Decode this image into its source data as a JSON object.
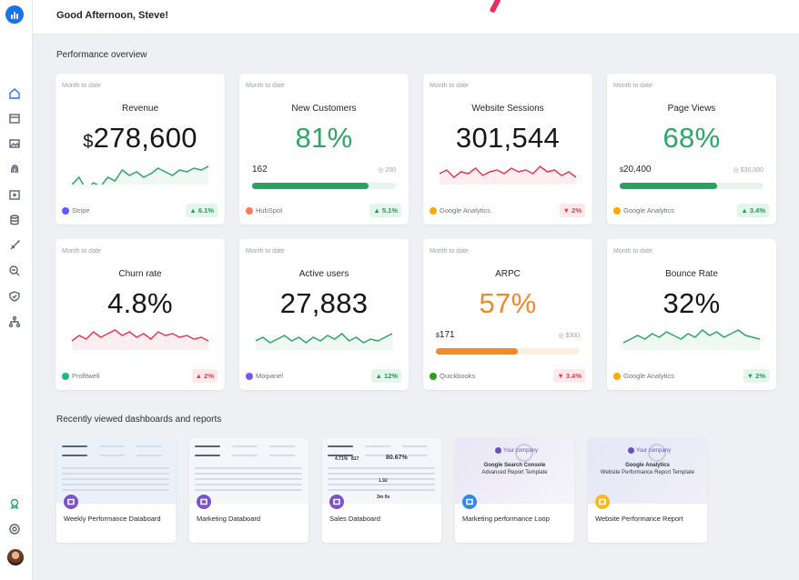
{
  "header": {
    "greeting": "Good Afternoon, Steve!"
  },
  "sections": {
    "overview": "Performance overview",
    "recent": "Recently viewed dashboards and reports"
  },
  "sidebar": {
    "items": [
      "home-icon",
      "calendar-icon",
      "image-icon",
      "fingerprint-icon",
      "plus-box-icon",
      "database-icon",
      "rocket-icon",
      "search-minus-icon",
      "shield-icon",
      "network-icon"
    ],
    "bottom": [
      "badge-icon",
      "help-icon",
      "avatar"
    ]
  },
  "cards": [
    {
      "mtd": "Month to date",
      "title": "Revenue",
      "value_prefix": "$",
      "value": "278,600",
      "color": "dark",
      "source": "Stripe",
      "source_color": "#635bff",
      "delta": "▲ 6.1%",
      "dir": "up",
      "spark": [
        38,
        30,
        44,
        36,
        40,
        30,
        34,
        22,
        28,
        24,
        30,
        26,
        20,
        24,
        28,
        22,
        24,
        20,
        22,
        18
      ],
      "spark_color": "#2ea66a"
    },
    {
      "mtd": "Month to date",
      "title": "New Customers",
      "value": "81%",
      "color": "green",
      "progress": {
        "current": "162",
        "target": "200",
        "pct": 0.81,
        "style": "green"
      },
      "source": "HubSpot",
      "source_color": "#ff7a59",
      "delta": "▲ 5.1%",
      "dir": "up"
    },
    {
      "mtd": "Month to date",
      "title": "Website Sessions",
      "value": "301,544",
      "color": "dark",
      "source": "Google Analytics",
      "source_color": "#f9ab00",
      "delta": "▼ 2%",
      "dir": "down",
      "spark": [
        26,
        22,
        30,
        24,
        26,
        20,
        28,
        24,
        22,
        26,
        20,
        24,
        22,
        26,
        18,
        24,
        22,
        28,
        24,
        30
      ],
      "spark_color": "#e8384f"
    },
    {
      "mtd": "Month to date",
      "title": "Page Views",
      "value": "68%",
      "color": "green",
      "progress": {
        "current_prefix": "$",
        "current": "20,400",
        "target": "$30,000",
        "pct": 0.68,
        "style": "green"
      },
      "source": "Google Analytics",
      "source_color": "#f9ab00",
      "delta": "▲ 3.4%",
      "dir": "up"
    },
    {
      "mtd": "Month to date",
      "title": "Churn rate",
      "value": "4.8%",
      "color": "dark",
      "source": "Profitwell",
      "source_color": "#21b685",
      "delta": "▲ 2%",
      "dir": "down",
      "spark": [
        28,
        22,
        26,
        18,
        24,
        20,
        16,
        22,
        18,
        24,
        20,
        26,
        18,
        22,
        20,
        24,
        22,
        26,
        24,
        28
      ],
      "spark_color": "#e8384f"
    },
    {
      "mtd": "Month to date",
      "title": "Active users",
      "value": "27,883",
      "color": "dark",
      "source": "Mixpanel",
      "source_color": "#7856ff",
      "delta": "▲ 12%",
      "dir": "up",
      "spark": [
        28,
        24,
        30,
        26,
        22,
        28,
        24,
        30,
        24,
        28,
        22,
        26,
        20,
        28,
        24,
        30,
        26,
        28,
        24,
        20
      ],
      "spark_color": "#2ea66a"
    },
    {
      "mtd": "Month to date",
      "title": "ARPC",
      "value": "57%",
      "color": "orange",
      "progress": {
        "current_prefix": "$",
        "current": "171",
        "target": "$300",
        "pct": 0.57,
        "style": "orange"
      },
      "source": "Quickbooks",
      "source_color": "#2ca01c",
      "delta": "▼ 3.4%",
      "dir": "down"
    },
    {
      "mtd": "Month to date",
      "title": "Bounce Rate",
      "value": "32%",
      "color": "dark",
      "source": "Google Analytics",
      "source_color": "#f9ab00",
      "delta": "▼ 2%",
      "dir": "up",
      "spark": [
        30,
        26,
        22,
        26,
        20,
        24,
        18,
        22,
        26,
        20,
        24,
        16,
        22,
        18,
        24,
        20,
        16,
        22,
        24,
        26
      ],
      "spark_color": "#2ea66a"
    }
  ],
  "recent": [
    {
      "name": "Weekly Performance Databoard",
      "thumb": "blue",
      "badge": "purple"
    },
    {
      "name": "Marketing Databoard",
      "thumb": "plain",
      "badge": "purple"
    },
    {
      "name": "Sales Databoard",
      "thumb": "plain",
      "badge": "purple",
      "stats": [
        "4.71%",
        "817",
        "80.67%",
        "1.92",
        "3m 0s"
      ]
    },
    {
      "name": "Marketing performance Loop",
      "thumb": "purple",
      "badge": "blue",
      "company": "Your company",
      "t1": "Google Search Console",
      "t2": "Advanced Report Template"
    },
    {
      "name": "Website Performance Report",
      "thumb": "lavender",
      "badge": "yellow",
      "company": "Your company",
      "t1": "Google Analytics",
      "t2": "Website Performance Report Template"
    }
  ]
}
